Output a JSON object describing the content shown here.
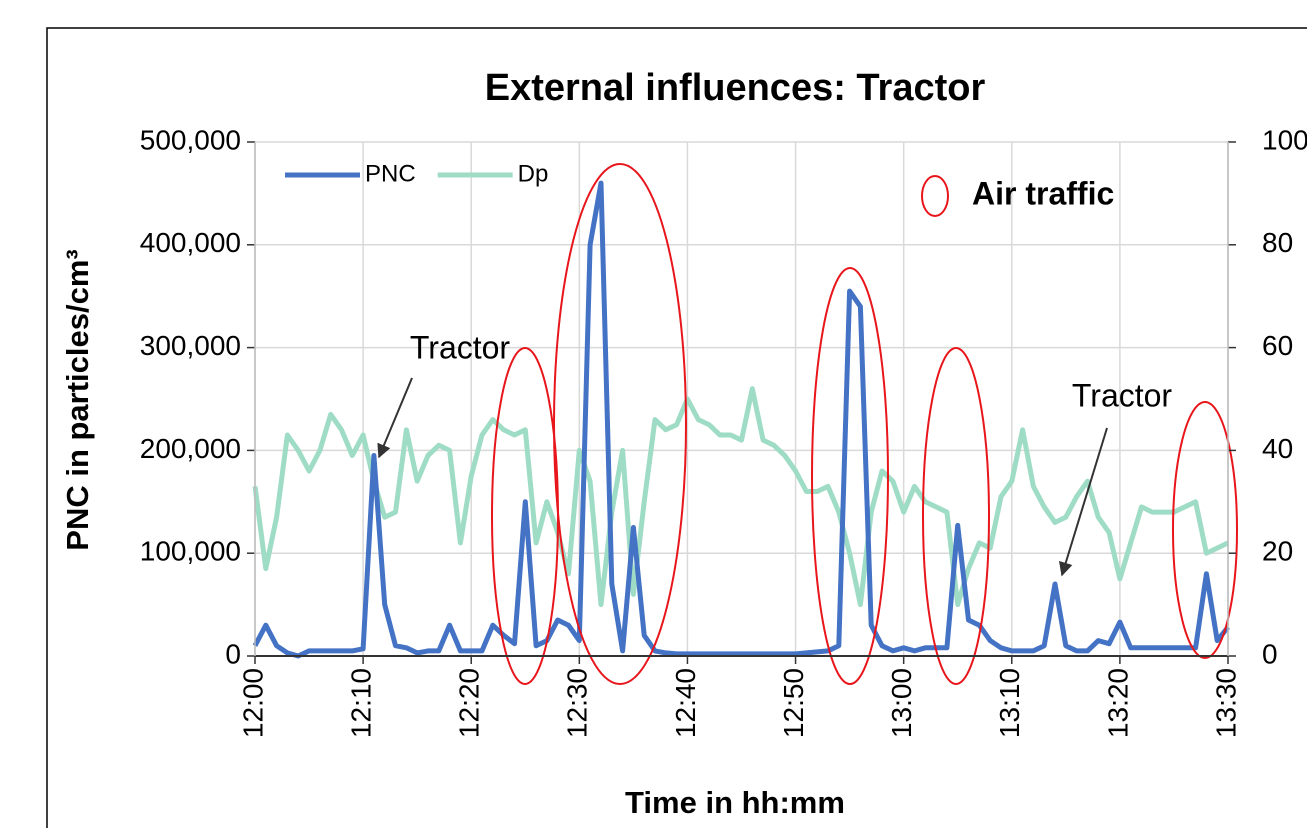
{
  "chart_data": {
    "type": "line",
    "title": "External influences: Tractor",
    "x_label": "Time in hh:mm",
    "y_label": "PNC in particles/cm³",
    "x": [
      "12:00",
      "12:01",
      "12:02",
      "12:03",
      "12:04",
      "12:05",
      "12:06",
      "12:07",
      "12:08",
      "12:09",
      "12:10",
      "12:11",
      "12:12",
      "12:13",
      "12:14",
      "12:15",
      "12:16",
      "12:17",
      "12:18",
      "12:19",
      "12:20",
      "12:21",
      "12:22",
      "12:23",
      "12:24",
      "12:25",
      "12:26",
      "12:27",
      "12:28",
      "12:29",
      "12:30",
      "12:31",
      "12:32",
      "12:33",
      "12:34",
      "12:35",
      "12:36",
      "12:37",
      "12:38",
      "12:39",
      "12:40",
      "12:41",
      "12:42",
      "12:43",
      "12:44",
      "12:45",
      "12:46",
      "12:47",
      "12:48",
      "12:49",
      "12:50",
      "12:51",
      "12:52",
      "12:53",
      "12:54",
      "12:55",
      "12:56",
      "12:57",
      "12:58",
      "12:59",
      "13:00",
      "13:01",
      "13:02",
      "13:03",
      "13:04",
      "13:05",
      "13:06",
      "13:07",
      "13:08",
      "13:09",
      "13:10",
      "13:11",
      "13:12",
      "13:13",
      "13:14",
      "13:15",
      "13:16",
      "13:17",
      "13:18",
      "13:19",
      "13:20",
      "13:21",
      "13:22",
      "13:23",
      "13:24",
      "13:25",
      "13:26",
      "13:27",
      "13:28",
      "13:29",
      "13:30"
    ],
    "series": [
      {
        "name": "PNC",
        "color": "#4472c4",
        "axis": "y",
        "values": [
          10000,
          30000,
          10000,
          3000,
          0,
          5000,
          5000,
          5000,
          5000,
          5000,
          7000,
          195000,
          50000,
          10000,
          8000,
          3000,
          5000,
          5000,
          30000,
          5000,
          5000,
          5000,
          30000,
          20000,
          12000,
          150000,
          10000,
          15000,
          35000,
          30000,
          15000,
          400000,
          460000,
          70000,
          5000,
          125000,
          20000,
          5000,
          3000,
          2000,
          2000,
          2000,
          2000,
          2000,
          2000,
          2000,
          2000,
          2000,
          2000,
          2000,
          2000,
          3000,
          4000,
          5000,
          10000,
          355000,
          340000,
          30000,
          10000,
          5000,
          8000,
          5000,
          8000,
          8000,
          8000,
          127000,
          35000,
          30000,
          15000,
          8000,
          5000,
          5000,
          5000,
          10000,
          70000,
          10000,
          5000,
          5000,
          15000,
          12000,
          33000,
          8000,
          8000,
          8000,
          8000,
          8000,
          8000,
          8000,
          80000,
          15000,
          28000
        ]
      },
      {
        "name": "Dp",
        "color": "#9fdcc6",
        "axis": "y2",
        "values": [
          33,
          17,
          27,
          43,
          40,
          36,
          40,
          47,
          44,
          39,
          43,
          34,
          27,
          28,
          44,
          34,
          39,
          41,
          40,
          22,
          35,
          43,
          46,
          44,
          43,
          44,
          22,
          30,
          24,
          16,
          40,
          34,
          10,
          28,
          40,
          12,
          30,
          46,
          44,
          45,
          50,
          46,
          45,
          43,
          43,
          42,
          52,
          42,
          41,
          39,
          36,
          32,
          32,
          33,
          28,
          20,
          10,
          28,
          36,
          34,
          28,
          33,
          30,
          29,
          28,
          10,
          17,
          22,
          21,
          31,
          34,
          44,
          33,
          29,
          26,
          27,
          31,
          34,
          27,
          24,
          15,
          22,
          29,
          28,
          28,
          28,
          29,
          30,
          20,
          21,
          22
        ]
      }
    ],
    "xlim": [
      "12:00",
      "13:30"
    ],
    "xticks": [
      "12:00",
      "12:10",
      "12:20",
      "12:30",
      "12:40",
      "12:50",
      "13:00",
      "13:10",
      "13:20",
      "13:30"
    ],
    "ylim": [
      0,
      500000
    ],
    "yticks": [
      0,
      {
        "value": 100000,
        "label": "100,000"
      },
      {
        "value": 200000,
        "label": "200,000"
      },
      {
        "value": 300000,
        "label": "300,000"
      },
      {
        "value": 400000,
        "label": "400,000"
      },
      {
        "value": 500000,
        "label": "500,000"
      }
    ],
    "y2lim": [
      0,
      100
    ],
    "y2ticks": [
      0,
      20,
      40,
      60,
      80,
      100
    ],
    "grid": true,
    "legend": "upper left",
    "annotations": [
      "Tractor",
      "Tractor",
      "Air traffic"
    ]
  }
}
